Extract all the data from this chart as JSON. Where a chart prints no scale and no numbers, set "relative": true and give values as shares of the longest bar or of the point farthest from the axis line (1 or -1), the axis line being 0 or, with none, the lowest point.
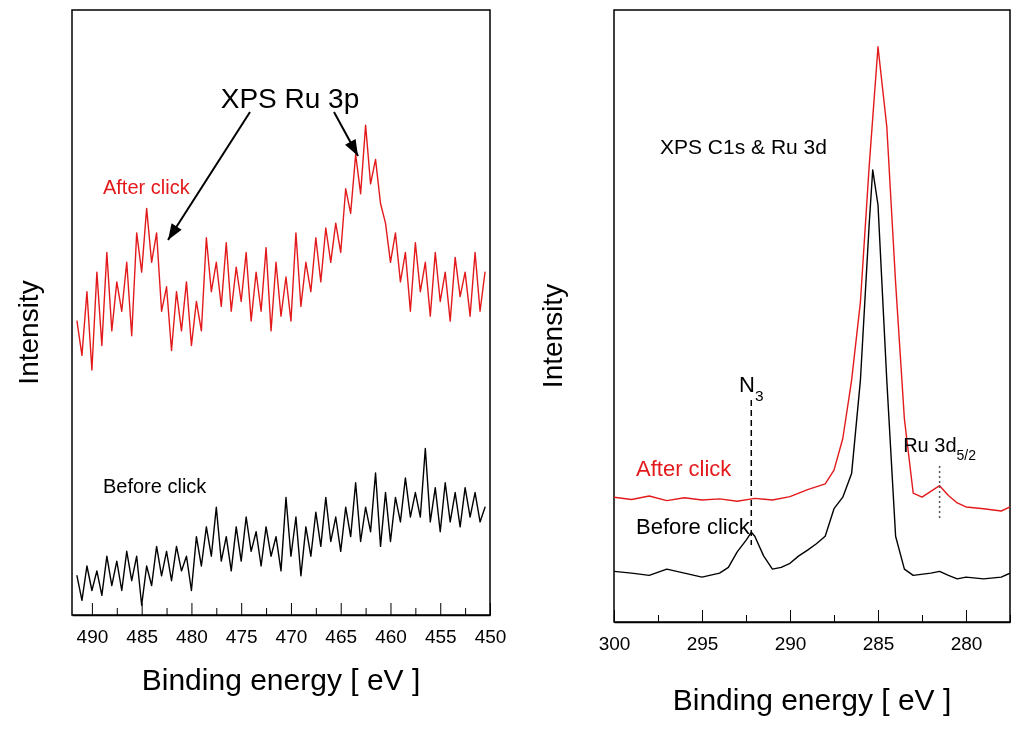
{
  "chart_data": [
    {
      "type": "line",
      "relative": true,
      "xlabel": "Binding energy [ eV ]",
      "ylabel": "Intensity",
      "xlim": [
        492,
        450
      ],
      "xticks": [
        490,
        {
          "value": 487.5,
          "label": null
        },
        485,
        {
          "value": 482.5,
          "label": null
        },
        480,
        {
          "value": 477.5,
          "label": null
        },
        475,
        {
          "value": 472.5,
          "label": null
        },
        470,
        {
          "value": 467.5,
          "label": null
        },
        465,
        {
          "value": 462.5,
          "label": null
        },
        460,
        {
          "value": 457.5,
          "label": null
        },
        455,
        {
          "value": 452.5,
          "label": null
        },
        450
      ],
      "annotations": [
        "XPS Ru 3p"
      ],
      "x": [
        491.5,
        491,
        490.5,
        490,
        489.5,
        489,
        488.5,
        488,
        487.5,
        487,
        486.5,
        486,
        485.5,
        485,
        484.5,
        484,
        483.5,
        483,
        482.5,
        482,
        481.5,
        481,
        480.5,
        480,
        479.5,
        479,
        478.5,
        478,
        477.5,
        477,
        476.5,
        476,
        475.5,
        475,
        474.5,
        474,
        473.5,
        473,
        472.5,
        472,
        471.5,
        471,
        470.5,
        470,
        469.5,
        469,
        468.5,
        468,
        467.5,
        467,
        466.5,
        466,
        465.5,
        465,
        464.5,
        464,
        463.5,
        463,
        462.5,
        462,
        461.5,
        461,
        460.5,
        460,
        459.5,
        459,
        458.5,
        458,
        457.5,
        457,
        456.5,
        456,
        455.5,
        455,
        454.5,
        454,
        453.5,
        453,
        452.5,
        452,
        451.5,
        451,
        450.5
      ],
      "series": [
        {
          "name": "After click",
          "color": "#e31a1c",
          "values": [
            0.6,
            0.53,
            0.66,
            0.5,
            0.7,
            0.55,
            0.74,
            0.58,
            0.68,
            0.62,
            0.72,
            0.57,
            0.78,
            0.7,
            0.83,
            0.72,
            0.78,
            0.62,
            0.67,
            0.54,
            0.66,
            0.58,
            0.68,
            0.55,
            0.64,
            0.58,
            0.77,
            0.66,
            0.72,
            0.63,
            0.76,
            0.62,
            0.71,
            0.64,
            0.74,
            0.6,
            0.7,
            0.62,
            0.75,
            0.58,
            0.72,
            0.61,
            0.69,
            0.6,
            0.78,
            0.63,
            0.72,
            0.66,
            0.77,
            0.68,
            0.79,
            0.72,
            0.8,
            0.74,
            0.87,
            0.82,
            0.94,
            0.86,
            1.0,
            0.88,
            0.93,
            0.84,
            0.8,
            0.72,
            0.78,
            0.68,
            0.74,
            0.62,
            0.76,
            0.66,
            0.72,
            0.61,
            0.74,
            0.64,
            0.7,
            0.6,
            0.73,
            0.65,
            0.7,
            0.61,
            0.74,
            0.62,
            0.7
          ]
        },
        {
          "name": "Before click",
          "color": "#000000",
          "values": [
            0.08,
            0.03,
            0.1,
            0.05,
            0.09,
            0.04,
            0.12,
            0.06,
            0.11,
            0.05,
            0.13,
            0.07,
            0.12,
            0.02,
            0.1,
            0.06,
            0.14,
            0.08,
            0.13,
            0.07,
            0.14,
            0.09,
            0.12,
            0.05,
            0.16,
            0.1,
            0.18,
            0.12,
            0.22,
            0.11,
            0.16,
            0.09,
            0.18,
            0.11,
            0.2,
            0.13,
            0.17,
            0.1,
            0.18,
            0.12,
            0.16,
            0.09,
            0.24,
            0.12,
            0.2,
            0.08,
            0.18,
            0.12,
            0.21,
            0.14,
            0.24,
            0.15,
            0.2,
            0.13,
            0.22,
            0.16,
            0.27,
            0.15,
            0.22,
            0.17,
            0.29,
            0.14,
            0.25,
            0.15,
            0.24,
            0.19,
            0.28,
            0.2,
            0.25,
            0.2,
            0.34,
            0.19,
            0.26,
            0.17,
            0.27,
            0.19,
            0.25,
            0.18,
            0.26,
            0.2,
            0.25,
            0.19,
            0.22
          ]
        }
      ]
    },
    {
      "type": "line",
      "relative": true,
      "xlabel": "Binding energy [ eV ]",
      "ylabel": "Intensity",
      "xlim": [
        300,
        277.5
      ],
      "xticks": [
        300,
        {
          "value": 297.5,
          "label": null
        },
        295,
        {
          "value": 292.5,
          "label": null
        },
        290,
        {
          "value": 287.5,
          "label": null
        },
        285,
        {
          "value": 282.5,
          "label": null
        },
        280,
        {
          "value": 277.5,
          "label": null
        }
      ],
      "annotations": [
        "XPS C1s & Ru 3d"
      ],
      "ref_lines": [
        {
          "axis": "x",
          "value": 292.2,
          "label": "N$_{3}$",
          "color": "#000000",
          "line_style": "dashed"
        },
        {
          "axis": "x",
          "value": 281.5,
          "label": "Ru 3d$_{5/2}$",
          "color": "#555555",
          "line_style": "dotted"
        }
      ],
      "series": [
        {
          "name": "After click",
          "color": "#e31a1c",
          "x": [
            300,
            299,
            298,
            297,
            296,
            295,
            294,
            293,
            292,
            291,
            290,
            289,
            288,
            287.5,
            287,
            286.5,
            286,
            285.5,
            285,
            284.5,
            284,
            283.5,
            283,
            282.5,
            282,
            281.5,
            281,
            280.5,
            280,
            279,
            278,
            277.5
          ],
          "values": [
            0.217,
            0.213,
            0.219,
            0.211,
            0.216,
            0.212,
            0.214,
            0.21,
            0.215,
            0.212,
            0.218,
            0.23,
            0.24,
            0.264,
            0.319,
            0.42,
            0.556,
            0.793,
            1.0,
            0.861,
            0.59,
            0.353,
            0.224,
            0.217,
            0.227,
            0.237,
            0.22,
            0.207,
            0.2,
            0.197,
            0.193,
            0.2
          ]
        },
        {
          "name": "Before click",
          "color": "#000000",
          "x": [
            300,
            299,
            298,
            297,
            296,
            295,
            294,
            293.5,
            293,
            292.5,
            292.2,
            292,
            291.5,
            291,
            290.5,
            290,
            289.5,
            289,
            288.5,
            288,
            287.5,
            287,
            286.5,
            286,
            285.5,
            285.3,
            285,
            284.5,
            284,
            283.5,
            283,
            282,
            281.5,
            281,
            280.5,
            280,
            279,
            278,
            277.5
          ],
          "values": [
            0.088,
            0.085,
            0.081,
            0.092,
            0.085,
            0.078,
            0.085,
            0.095,
            0.122,
            0.142,
            0.156,
            0.149,
            0.115,
            0.092,
            0.095,
            0.102,
            0.115,
            0.125,
            0.136,
            0.149,
            0.197,
            0.217,
            0.258,
            0.42,
            0.692,
            0.786,
            0.725,
            0.42,
            0.149,
            0.092,
            0.081,
            0.085,
            0.088,
            0.081,
            0.075,
            0.078,
            0.075,
            0.078,
            0.085
          ]
        }
      ]
    }
  ]
}
